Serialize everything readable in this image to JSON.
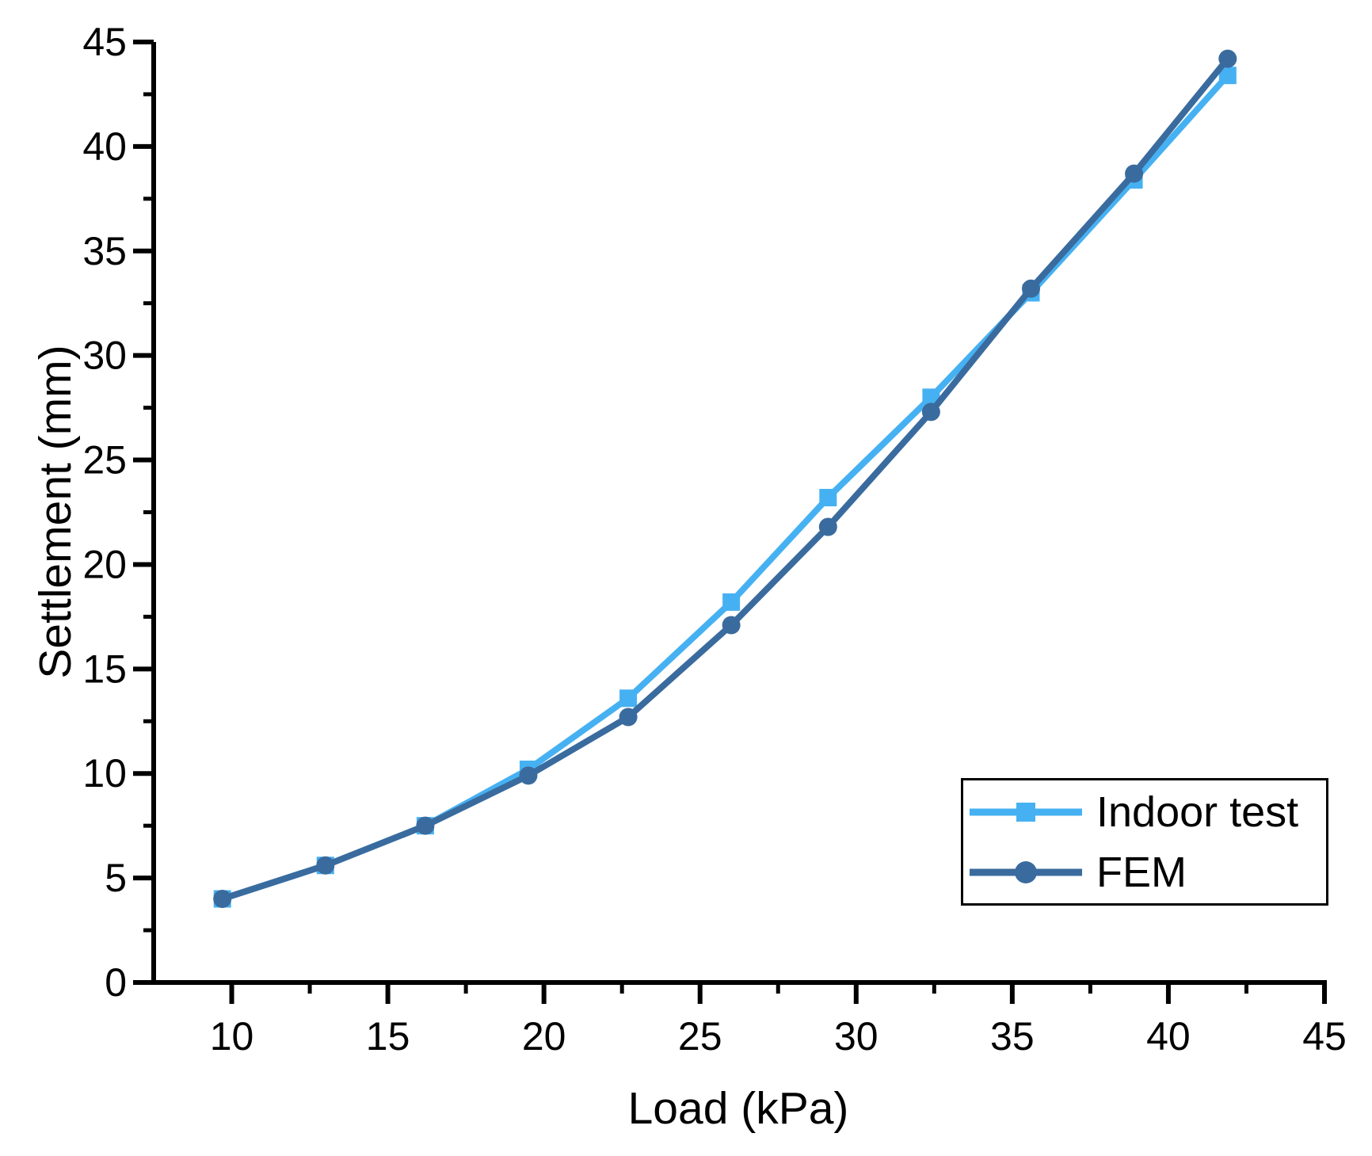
{
  "figure": {
    "background": "#ffffff",
    "text_color": "#000000"
  },
  "chart_data": {
    "type": "line",
    "title": "",
    "xlabel": "Load (kPa)",
    "ylabel": "Settlement (mm)",
    "xlim": [
      7.5,
      45.5
    ],
    "ylim": [
      0,
      45
    ],
    "x_ticks": [
      10,
      15,
      20,
      25,
      30,
      35,
      40,
      45
    ],
    "y_ticks": [
      0,
      5,
      10,
      15,
      20,
      25,
      30,
      35,
      40,
      45
    ],
    "minor_ticks": true,
    "grid": false,
    "legend_position": "lower-right",
    "axis_color": "#000000",
    "x": [
      9.7,
      13.0,
      16.2,
      19.5,
      22.7,
      26.0,
      29.1,
      32.4,
      35.6,
      38.9,
      41.9
    ],
    "series": [
      {
        "name": "Indoor test",
        "marker": "square",
        "color": "#46b1f2",
        "values": [
          4.0,
          5.6,
          7.5,
          10.2,
          13.6,
          18.2,
          23.2,
          28.0,
          33.0,
          38.4,
          43.4
        ]
      },
      {
        "name": "FEM",
        "marker": "circle",
        "color": "#3a6b9e",
        "values": [
          4.0,
          5.6,
          7.5,
          9.9,
          12.7,
          17.1,
          21.8,
          27.3,
          33.2,
          38.7,
          44.2
        ]
      }
    ]
  }
}
